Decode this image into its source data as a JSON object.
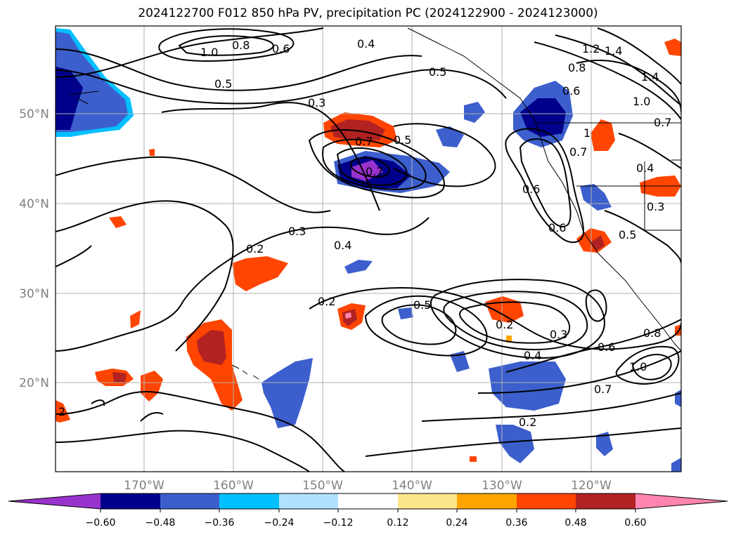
{
  "title": "2024122700 F012 850 hPa PV, precipitation PC (2024122900 - 2024123000)",
  "lat_labels": [
    "50°N",
    "40°N",
    "30°N",
    "20°N"
  ],
  "lon_labels": [
    "170°W",
    "160°W",
    "150°W",
    "140°W",
    "130°W",
    "120°W"
  ],
  "colorbar": {
    "ticks": [
      "−0.60",
      "−0.48",
      "−0.36",
      "−0.24",
      "−0.12",
      "0.12",
      "0.24",
      "0.36",
      "0.48",
      "0.60"
    ],
    "colors": [
      "#9932cc",
      "#00008b",
      "#3c5fcd",
      "#00bfff",
      "#b0e2ff",
      "#ffffff",
      "#fde68a",
      "#ffa500",
      "#ff4500",
      "#b22222",
      "#ff85b0"
    ]
  },
  "contour_labels": [
    "1.0",
    "0.8",
    "0.6",
    "0.4",
    "0.5",
    "0.5",
    "0.3",
    "0.7",
    "0.5",
    "0.6",
    "1.2",
    "1.4",
    "0.8",
    "1.4",
    "1.0",
    "0.7",
    "0.6",
    "1",
    "0.7",
    "0.6",
    "0.4",
    "0.3",
    "0.7",
    "0.5",
    "0.2",
    "0.3",
    "0.4",
    "0.2",
    "0.5",
    "0.2",
    "0.3",
    "0.6",
    "0.8",
    "1.0",
    "0.4",
    "0.7",
    "0.2",
    "2"
  ]
}
